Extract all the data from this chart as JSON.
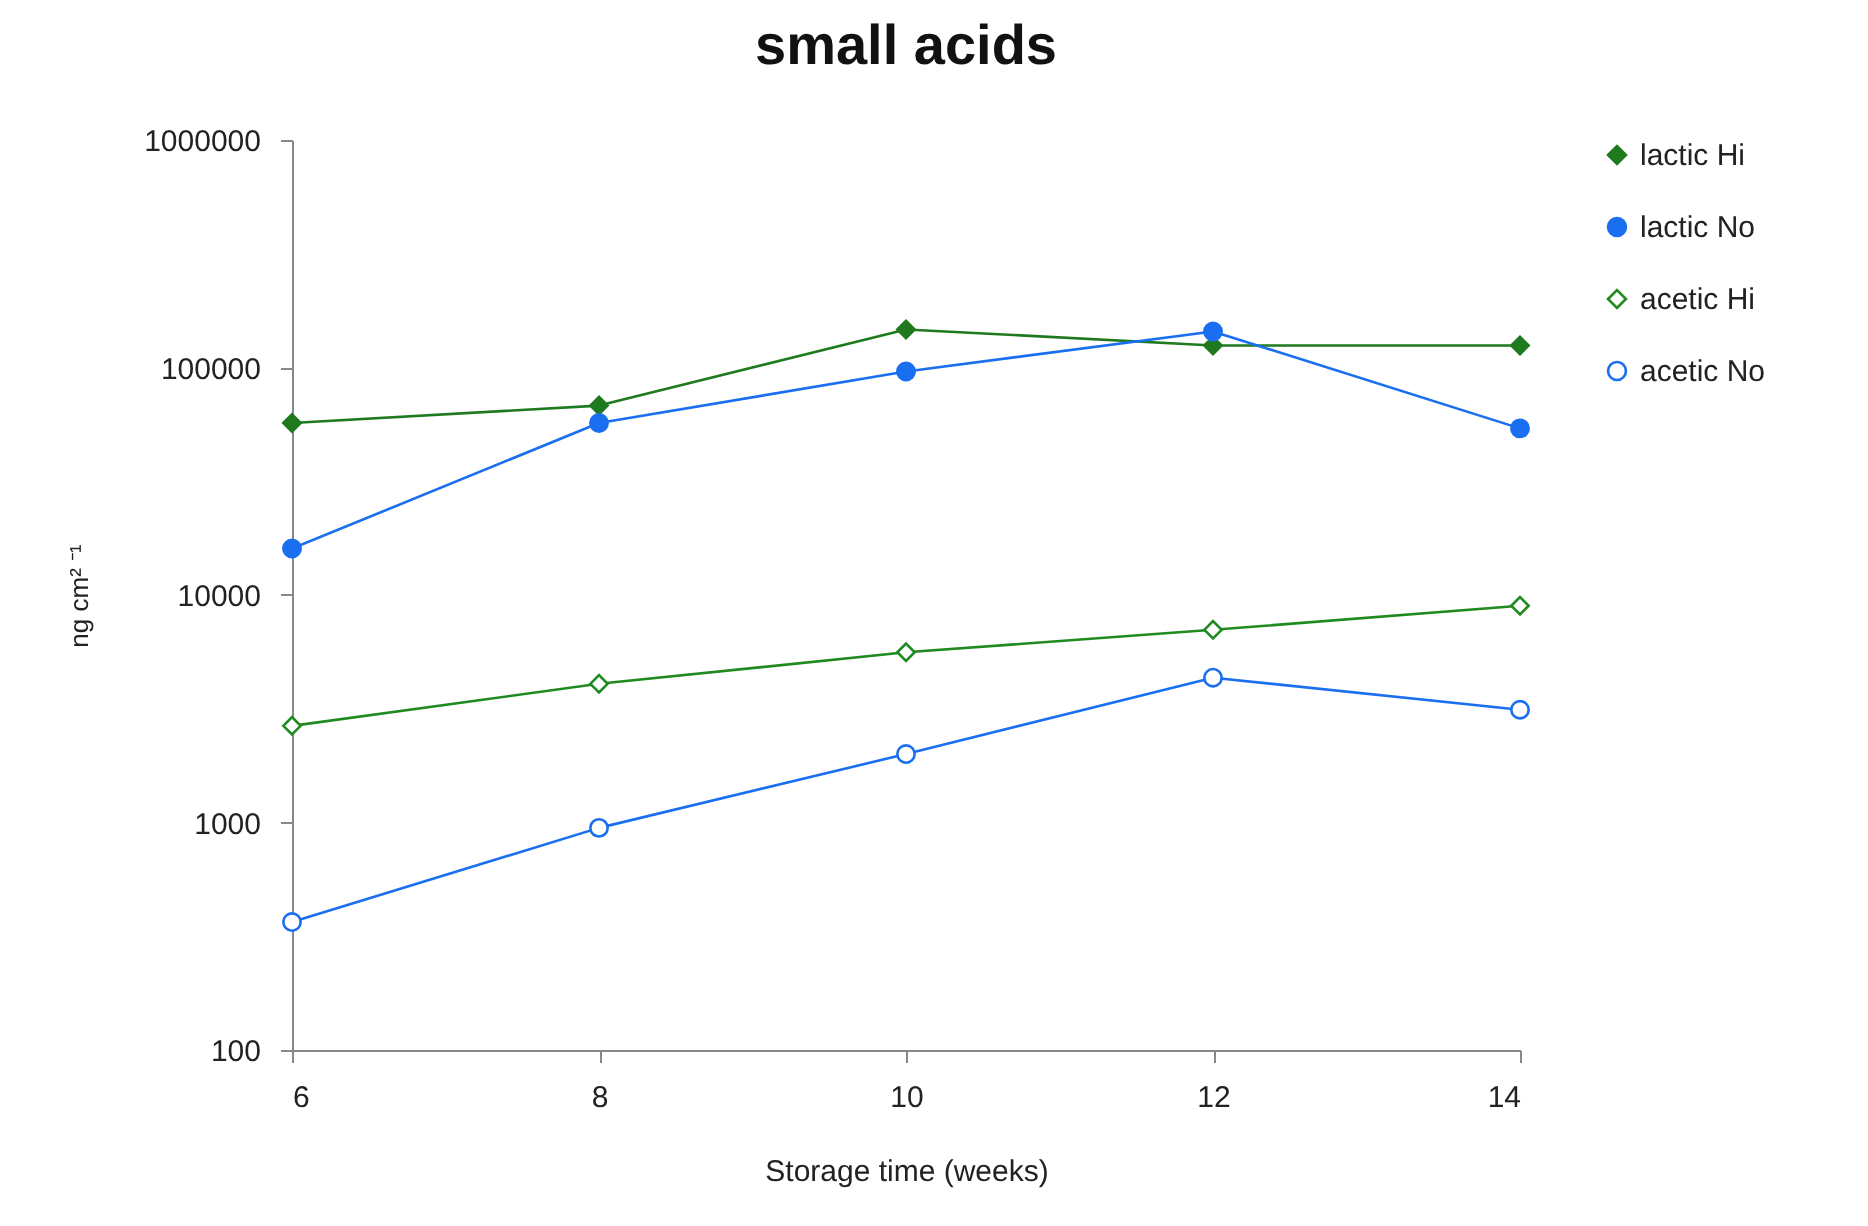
{
  "chart_data": {
    "type": "line",
    "title": "small acids",
    "xlabel": "Storage time (weeks)",
    "ylabel": "ng cm² ⁻¹",
    "x": [
      6,
      8,
      10,
      12,
      14
    ],
    "xlim": [
      6,
      14
    ],
    "xticks": [
      6,
      8,
      10,
      12,
      14
    ],
    "ylim": [
      100,
      1000000
    ],
    "yticks": [
      100,
      1000,
      10000,
      100000,
      1000000
    ],
    "log": "y",
    "grid": false,
    "legend": "right",
    "series": [
      {
        "name": "lactic Hi",
        "color": "#1f7a1f",
        "marker": "diamond",
        "values": [
          57000,
          68000,
          147000,
          125000,
          125000
        ]
      },
      {
        "name": "lactic No",
        "color": "#1a6ff0",
        "marker": "circle",
        "values": [
          16000,
          57000,
          96000,
          144000,
          54000
        ]
      },
      {
        "name": "acetic Hi",
        "color": "#1f8a1f",
        "marker": "diamond",
        "values": [
          2660,
          4070,
          5600,
          7030,
          8970
        ]
      },
      {
        "name": "acetic No",
        "color": "#1a6ff0",
        "marker": "circle",
        "values": [
          365,
          947,
          2000,
          4330,
          3130
        ]
      }
    ]
  }
}
